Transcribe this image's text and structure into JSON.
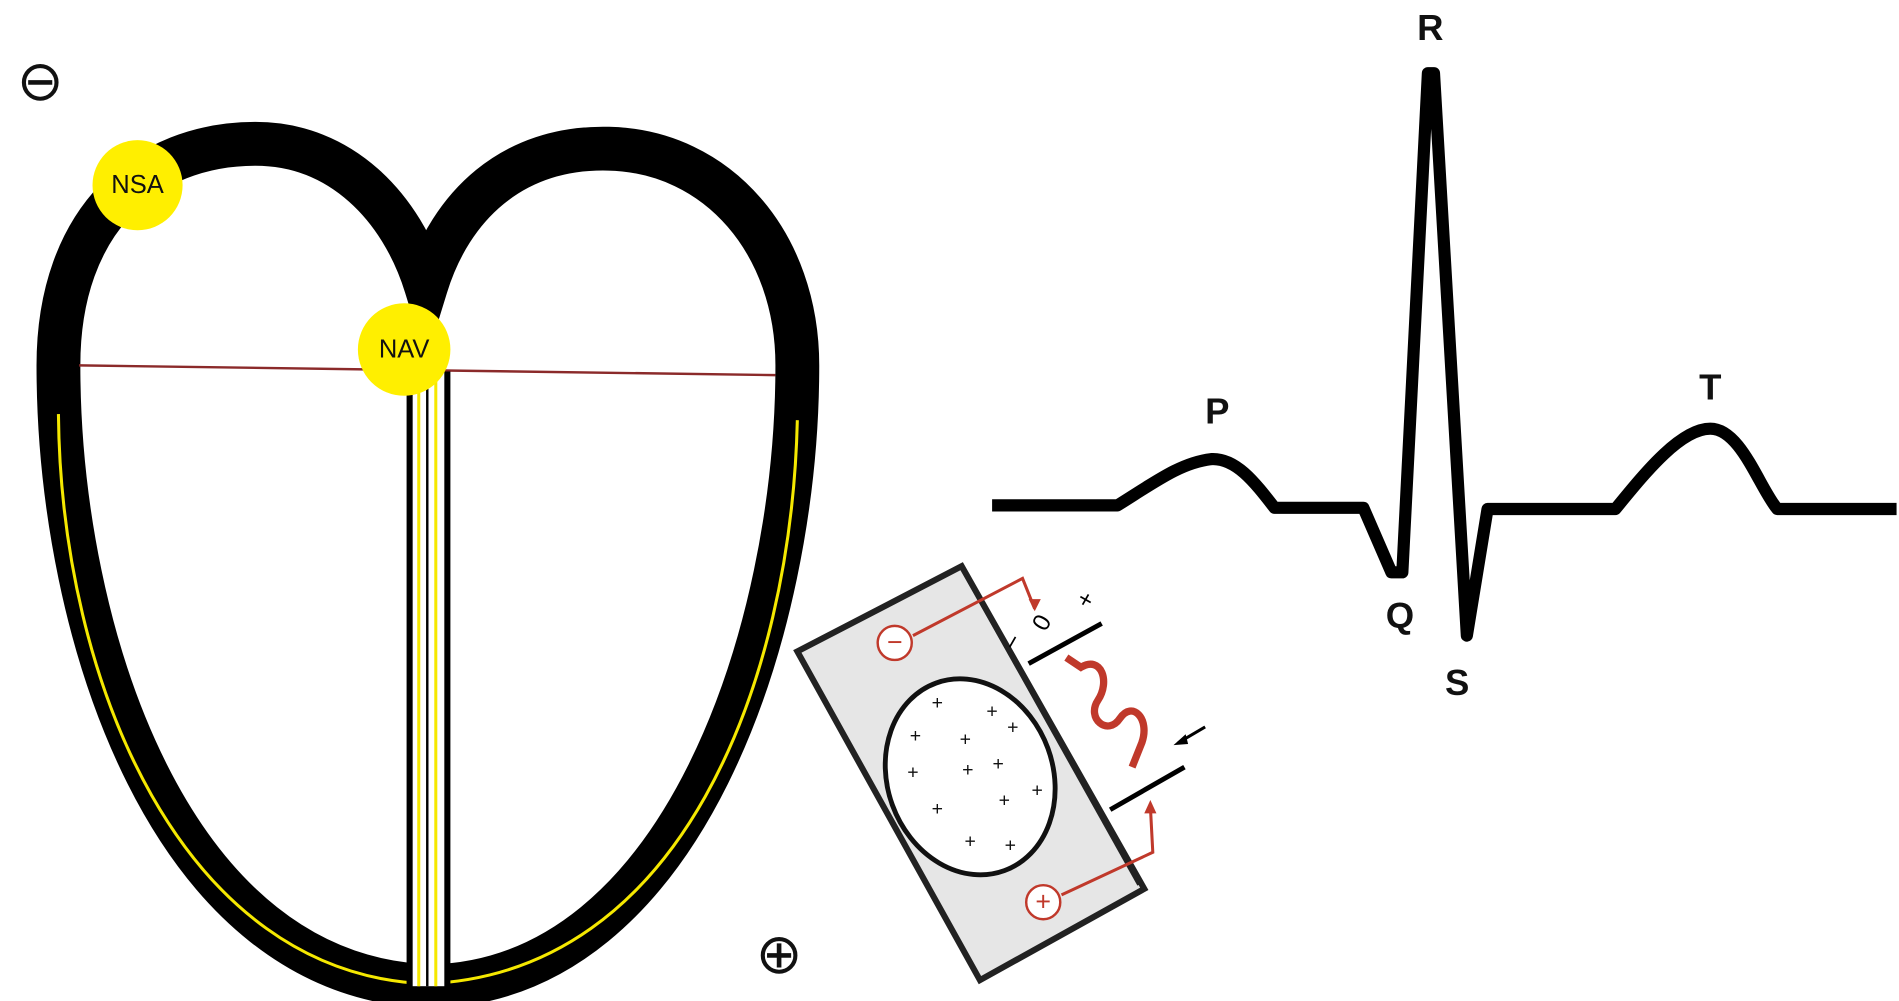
{
  "poles": {
    "negative": "⊖",
    "positive": "⊕"
  },
  "nodes": [
    {
      "label": "NSA"
    },
    {
      "label": "NAV"
    }
  ],
  "ecg_waves": [
    "P",
    "Q",
    "R",
    "S",
    "T"
  ],
  "device": {
    "electrode_negative": "−",
    "electrode_positive": "+",
    "scale": [
      "−",
      "0",
      "+"
    ],
    "charges": [
      "+",
      "+",
      "+",
      "+",
      "+",
      "+",
      "+",
      "+",
      "+",
      "+",
      "+",
      "+",
      "+"
    ]
  }
}
